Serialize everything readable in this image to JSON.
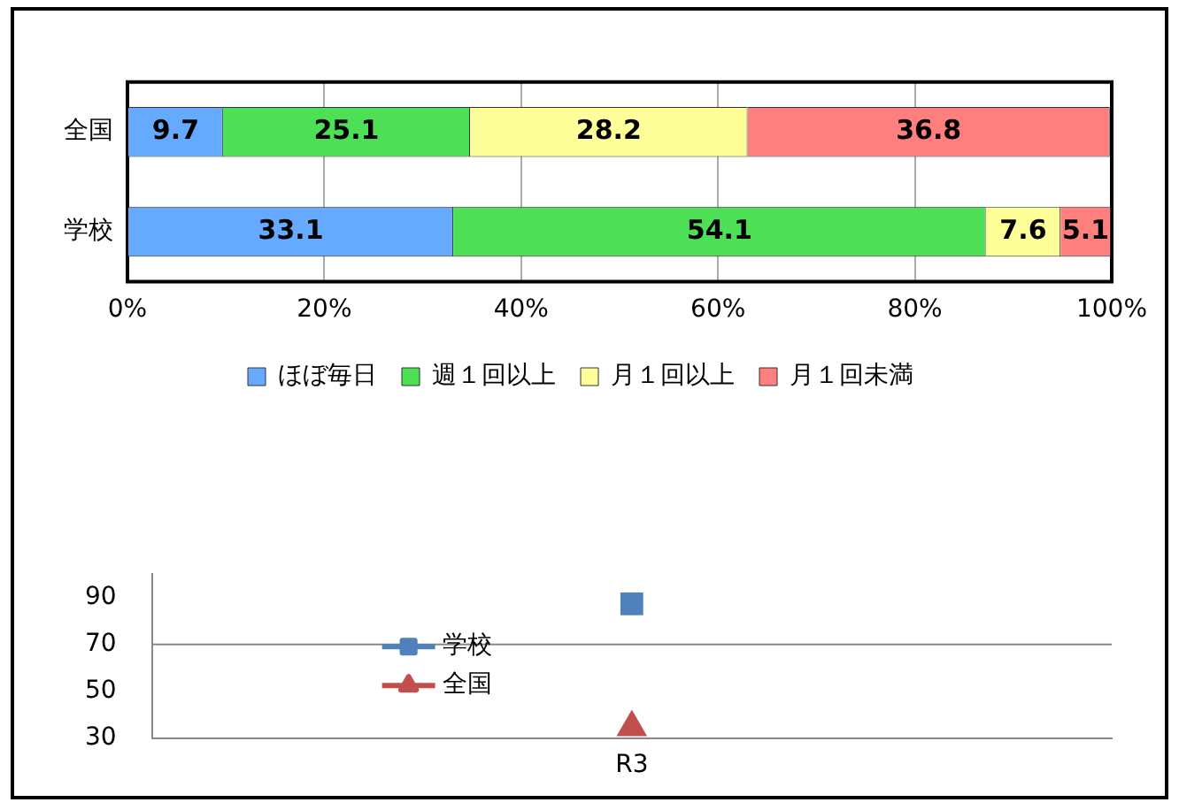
{
  "chart_data": [
    {
      "type": "bar",
      "orientation": "horizontal",
      "stacked": true,
      "categories": [
        "全国",
        "学校"
      ],
      "series": [
        {
          "name": "ほぼ毎日",
          "color": "#66aaff",
          "values": [
            9.7,
            33.1
          ]
        },
        {
          "name": "週１回以上",
          "color": "#4ddf55",
          "values": [
            25.1,
            54.1
          ]
        },
        {
          "name": "月１回以上",
          "color": "#ffff99",
          "values": [
            28.2,
            7.6
          ]
        },
        {
          "name": "月１回未満",
          "color": "#ff7f7f",
          "values": [
            36.8,
            5.1
          ]
        }
      ],
      "xlim": [
        0,
        100
      ],
      "xticks": [
        {
          "value": 0,
          "label": "0%"
        },
        {
          "value": 20,
          "label": "20%"
        },
        {
          "value": 40,
          "label": "40%"
        },
        {
          "value": 60,
          "label": "60%"
        },
        {
          "value": 80,
          "label": "80%"
        },
        {
          "value": 100,
          "label": "100%"
        }
      ],
      "data_labels": true,
      "grid": "x",
      "legend": "bottom"
    },
    {
      "type": "line",
      "categories": [
        "R3"
      ],
      "series": [
        {
          "name": "学校",
          "color": "#4f81bd",
          "values": [
            87.2
          ],
          "marker": "square"
        },
        {
          "name": "全国",
          "color": "#c0504d",
          "values": [
            34.8
          ],
          "marker": "triangle"
        }
      ],
      "ylim": [
        30,
        100
      ],
      "yticks": [
        30,
        50,
        70,
        90
      ],
      "ref_lines": [
        {
          "axis": "y",
          "value": 70
        }
      ],
      "line_style": "solid",
      "legend": "left"
    }
  ]
}
